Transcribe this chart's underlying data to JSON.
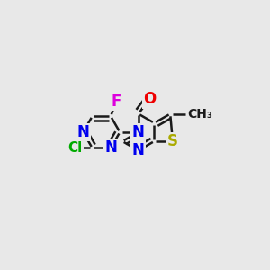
{
  "bg_color": "#e8e8e8",
  "bond_color": "#1a1a1a",
  "bond_lw": 1.8,
  "dbo": 0.02,
  "sf_ring": 0.09,
  "sf_sub": 0.12,
  "bl": 0.088,
  "Nconn": [
    0.5,
    0.52
  ],
  "atom_labels": [
    {
      "key": "lN1",
      "text": "N",
      "color": "#0000ee",
      "fontsize": 12,
      "ha": "center"
    },
    {
      "key": "lN3",
      "text": "N",
      "color": "#0000ee",
      "fontsize": 12,
      "ha": "center"
    },
    {
      "key": "lCl",
      "text": "Cl",
      "color": "#00aa00",
      "fontsize": 11,
      "ha": "center"
    },
    {
      "key": "lF",
      "text": "F",
      "color": "#dd00dd",
      "fontsize": 12,
      "ha": "center"
    },
    {
      "key": "Nconn",
      "text": "N",
      "color": "#0000ee",
      "fontsize": 12,
      "ha": "center"
    },
    {
      "key": "rNb",
      "text": "N",
      "color": "#0000ee",
      "fontsize": 12,
      "ha": "center"
    },
    {
      "key": "rO",
      "text": "O",
      "color": "#ee0000",
      "fontsize": 12,
      "ha": "center"
    },
    {
      "key": "tS",
      "text": "S",
      "color": "#aaaa00",
      "fontsize": 12,
      "ha": "center"
    },
    {
      "key": "tCH3",
      "text": "CH₃",
      "color": "#1a1a1a",
      "fontsize": 10,
      "ha": "left"
    }
  ]
}
